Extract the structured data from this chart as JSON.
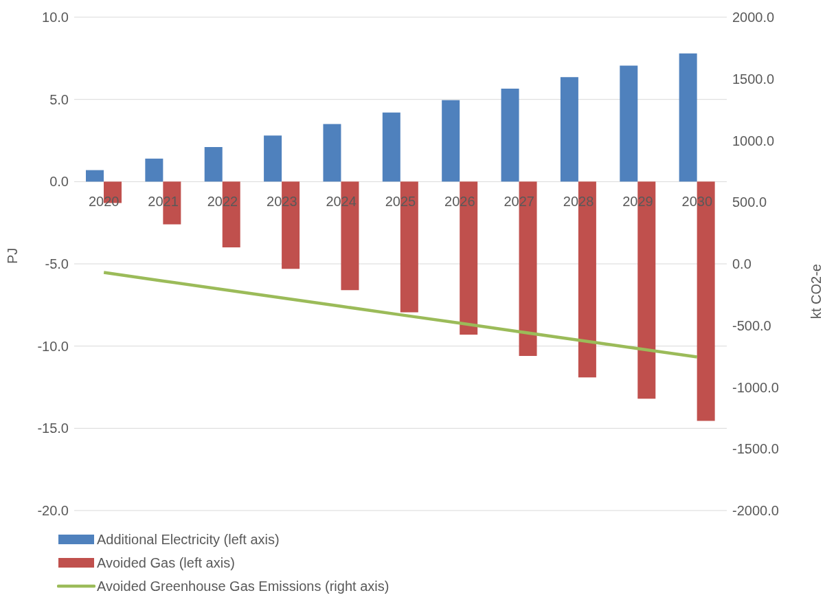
{
  "chart_data": {
    "type": "bar",
    "ylabel": "PJ",
    "y2label": "kt CO2-e",
    "categories": [
      "2020",
      "2021",
      "2022",
      "2023",
      "2024",
      "2025",
      "2026",
      "2027",
      "2028",
      "2029",
      "2030"
    ],
    "series": [
      {
        "name": "Additional Electricity (left axis)",
        "color": "#4f81bd",
        "values": [
          0.7,
          1.4,
          2.1,
          2.8,
          3.5,
          4.2,
          4.95,
          5.65,
          6.35,
          7.05,
          7.8
        ]
      },
      {
        "name": "Avoided Gas (left axis)",
        "color": "#c0504d",
        "values": [
          -1.3,
          -2.6,
          -4.0,
          -5.3,
          -6.6,
          -7.95,
          -9.3,
          -10.6,
          -11.9,
          -13.2,
          -14.55
        ]
      },
      {
        "name": "Avoided Greenhouse Gas Emissions (right axis)",
        "type": "line",
        "axis": "y2",
        "color": "#9bbb59",
        "values": [
          -70,
          -139,
          -207,
          -276,
          -344,
          -413,
          -481,
          -550,
          -618,
          -687,
          -755
        ]
      }
    ],
    "ylim": [
      -20,
      10
    ],
    "yticks": [
      {
        "value": -20,
        "label": "-20.0"
      },
      {
        "value": -15,
        "label": "-15.0"
      },
      {
        "value": -10,
        "label": "-10.0"
      },
      {
        "value": -5,
        "label": "-5.0"
      },
      {
        "value": 0,
        "label": "0.0"
      },
      {
        "value": 5,
        "label": "5.0"
      },
      {
        "value": 10,
        "label": "10.0"
      }
    ],
    "y2lim": [
      -2000,
      2000
    ],
    "y2ticks": [
      {
        "value": -2000,
        "label": "-2000.0"
      },
      {
        "value": -1500,
        "label": "-1500.0"
      },
      {
        "value": -1000,
        "label": "-1000.0"
      },
      {
        "value": -500,
        "label": "-500.0"
      },
      {
        "value": 0,
        "label": "0.0"
      },
      {
        "value": 500,
        "label": "500.0"
      },
      {
        "value": 1000,
        "label": "1000.0"
      },
      {
        "value": 1500,
        "label": "1500.0"
      },
      {
        "value": 2000,
        "label": "2000.0"
      }
    ],
    "grid": "y",
    "legend": "bottom",
    "marker": "none"
  }
}
